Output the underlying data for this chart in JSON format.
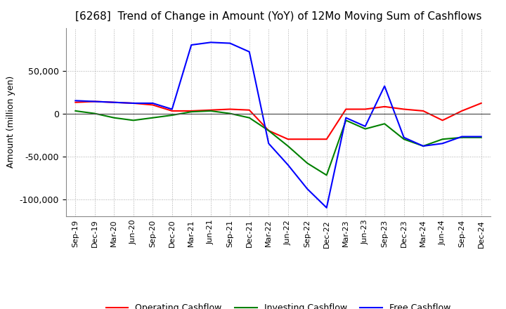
{
  "title": "[6268]  Trend of Change in Amount (YoY) of 12Mo Moving Sum of Cashflows",
  "ylabel": "Amount (million yen)",
  "x_labels": [
    "Sep-19",
    "Dec-19",
    "Mar-20",
    "Jun-20",
    "Sep-20",
    "Dec-20",
    "Mar-21",
    "Jun-21",
    "Sep-21",
    "Dec-21",
    "Mar-22",
    "Jun-22",
    "Sep-22",
    "Dec-22",
    "Mar-23",
    "Jun-23",
    "Sep-23",
    "Dec-23",
    "Mar-24",
    "Jun-24",
    "Sep-24",
    "Dec-24"
  ],
  "operating": [
    13000,
    14000,
    13000,
    12000,
    10000,
    3000,
    3000,
    4000,
    5000,
    4000,
    -20000,
    -30000,
    -30000,
    -30000,
    5000,
    5000,
    8000,
    5000,
    3000,
    -8000,
    3000,
    12000
  ],
  "investing": [
    3000,
    0,
    -5000,
    -8000,
    -5000,
    -2000,
    2000,
    3000,
    0,
    -5000,
    -20000,
    -38000,
    -58000,
    -72000,
    -8000,
    -18000,
    -12000,
    -30000,
    -38000,
    -30000,
    -28000,
    -28000
  ],
  "free": [
    15000,
    14000,
    13000,
    12000,
    12000,
    5000,
    80000,
    83000,
    82000,
    72000,
    -35000,
    -60000,
    -88000,
    -110000,
    -5000,
    -15000,
    32000,
    -28000,
    -38000,
    -35000,
    -27000,
    -27000
  ],
  "op_color": "#ff0000",
  "inv_color": "#008000",
  "free_color": "#0000ff",
  "ylim": [
    -120000,
    100000
  ],
  "yticks": [
    -100000,
    -50000,
    0,
    50000
  ],
  "grid_color": "#aaaaaa",
  "background_color": "#ffffff",
  "title_fontsize": 11,
  "legend_labels": [
    "Operating Cashflow",
    "Investing Cashflow",
    "Free Cashflow"
  ]
}
